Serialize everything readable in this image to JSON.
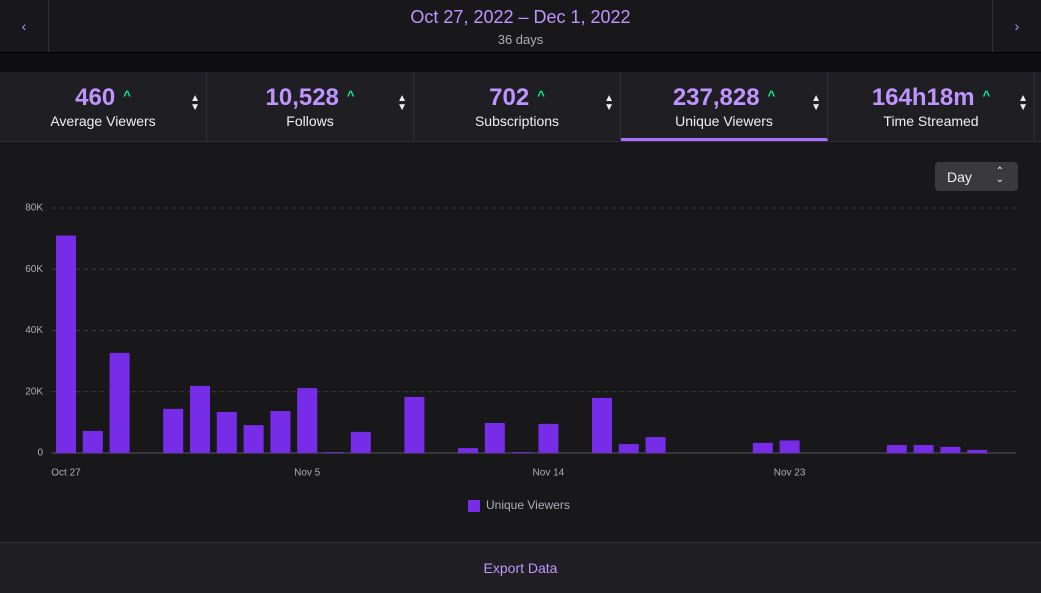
{
  "header": {
    "date_range": "Oct 27, 2022 – Dec 1, 2022",
    "duration": "36 days"
  },
  "stats": [
    {
      "value": "460",
      "label": "Average Viewers",
      "selected": false
    },
    {
      "value": "10,528",
      "label": "Follows",
      "selected": false
    },
    {
      "value": "702",
      "label": "Subscriptions",
      "selected": false
    },
    {
      "value": "237,828",
      "label": "Unique Viewers",
      "selected": true
    },
    {
      "value": "164h18m",
      "label": "Time Streamed",
      "selected": false
    }
  ],
  "interval": "Day",
  "chart_data": {
    "type": "bar",
    "categories": [
      "Oct 27",
      null,
      null,
      null,
      null,
      null,
      null,
      null,
      null,
      "Nov 5",
      null,
      null,
      null,
      null,
      null,
      null,
      null,
      null,
      "Nov 14",
      null,
      null,
      null,
      null,
      null,
      null,
      null,
      null,
      "Nov 23",
      null,
      null,
      null,
      null,
      null,
      null,
      null,
      null
    ],
    "series": [
      {
        "name": "Unique Viewers",
        "color": "#772ce8",
        "values": [
          71000,
          7200,
          32700,
          0,
          14400,
          21900,
          13400,
          9100,
          13700,
          21200,
          300,
          6900,
          0,
          18300,
          0,
          1600,
          9800,
          300,
          9500,
          0,
          18000,
          2900,
          5200,
          0,
          0,
          0,
          3300,
          4100,
          0,
          0,
          0,
          2600,
          2600,
          2000,
          1000,
          0
        ]
      }
    ],
    "ylim": [
      0,
      80000
    ],
    "yticks": [
      0,
      {
        "value": 20000,
        "label": "20K"
      },
      {
        "value": 40000,
        "label": "40K"
      },
      {
        "value": 60000,
        "label": "60K"
      },
      {
        "value": 80000,
        "label": "80K"
      }
    ],
    "grid": true,
    "legend": "bottom"
  },
  "footer": {
    "export": "Export Data"
  }
}
